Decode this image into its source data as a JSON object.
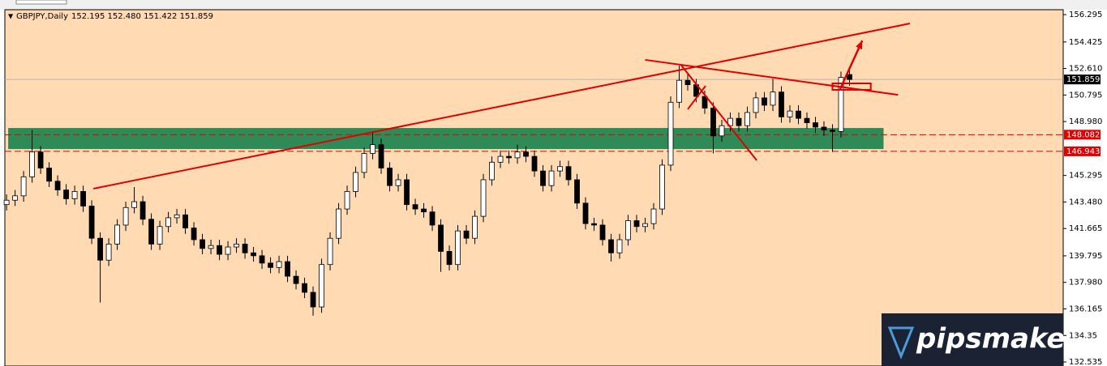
{
  "chart_data": {
    "type": "candlestick",
    "title": "GBPJPY,Daily",
    "subtitle": "152.195 152.480 151.422 151.859",
    "open": [
      143.3,
      143.6,
      143.9,
      145.2,
      146.9,
      145.8,
      144.9,
      144.3,
      143.7,
      144.2,
      143.2,
      141.0,
      139.5,
      140.6,
      141.9,
      143.1,
      143.5,
      142.3,
      140.6,
      141.8,
      142.4,
      142.6,
      141.7,
      140.9,
      140.3,
      140.5,
      139.9,
      140.4,
      140.6,
      140.0,
      139.8,
      139.3,
      139.0,
      139.4,
      138.4,
      137.9,
      137.3,
      136.3,
      139.2,
      141.0,
      143.0,
      144.2,
      145.5,
      146.8,
      147.4,
      145.8,
      144.6,
      145.0,
      143.3,
      143.0,
      142.8,
      141.9,
      140.1,
      139.2,
      141.5,
      141.0,
      142.5,
      145.0,
      146.2,
      146.6,
      146.5,
      146.9,
      146.6,
      145.6,
      144.6,
      145.6,
      145.9,
      145.0,
      143.4,
      142.0,
      141.9,
      140.9,
      140.0,
      140.9,
      142.2,
      141.8,
      142.0,
      143.0,
      146.0,
      150.3,
      151.8,
      151.5,
      150.7,
      149.9,
      148.0,
      148.7,
      149.2,
      148.7,
      149.6,
      150.6,
      150.1,
      151.0,
      149.3,
      149.7,
      149.2,
      148.9,
      148.6,
      148.4,
      148.3,
      152.195
    ],
    "high": [
      144.0,
      144.3,
      145.6,
      148.4,
      147.3,
      146.2,
      145.3,
      144.7,
      144.6,
      144.6,
      143.6,
      141.4,
      141.0,
      142.3,
      143.5,
      144.5,
      143.9,
      142.7,
      142.2,
      142.8,
      143.0,
      143.0,
      142.1,
      141.3,
      140.9,
      140.9,
      140.8,
      141.0,
      141.0,
      140.4,
      140.2,
      139.7,
      139.8,
      139.8,
      138.8,
      138.3,
      137.7,
      139.6,
      141.4,
      143.4,
      144.6,
      145.9,
      147.2,
      148.3,
      147.8,
      146.2,
      145.4,
      145.4,
      143.7,
      143.4,
      143.2,
      142.3,
      140.5,
      141.9,
      141.9,
      142.9,
      145.4,
      146.6,
      147.0,
      147.0,
      147.4,
      147.3,
      147.0,
      146.0,
      146.0,
      146.3,
      146.3,
      145.4,
      143.8,
      142.4,
      142.3,
      141.3,
      141.3,
      142.6,
      142.6,
      142.4,
      143.4,
      146.4,
      150.7,
      152.8,
      152.2,
      151.9,
      151.1,
      150.3,
      149.1,
      149.6,
      149.6,
      150.0,
      151.0,
      151.0,
      151.9,
      151.4,
      150.1,
      150.1,
      149.6,
      149.3,
      149.0,
      148.8,
      152.4,
      152.48
    ],
    "low": [
      142.9,
      143.2,
      143.5,
      144.8,
      145.4,
      144.5,
      143.9,
      143.3,
      143.3,
      142.8,
      140.6,
      136.6,
      139.1,
      140.2,
      141.5,
      142.7,
      141.9,
      140.2,
      140.2,
      141.4,
      142.0,
      141.3,
      140.5,
      139.9,
      139.9,
      139.5,
      139.5,
      140.0,
      139.6,
      139.4,
      138.9,
      138.6,
      138.6,
      138.0,
      137.5,
      136.9,
      135.7,
      135.9,
      138.8,
      140.6,
      142.6,
      143.8,
      145.1,
      146.4,
      145.4,
      144.2,
      144.2,
      142.9,
      142.6,
      142.4,
      141.5,
      138.7,
      138.8,
      138.8,
      140.6,
      140.6,
      142.1,
      144.6,
      145.8,
      146.1,
      146.1,
      146.2,
      145.2,
      144.2,
      144.2,
      145.2,
      144.6,
      143.0,
      141.6,
      141.5,
      140.5,
      139.4,
      139.6,
      140.5,
      141.4,
      141.4,
      141.6,
      142.6,
      145.6,
      149.9,
      151.1,
      150.3,
      149.5,
      146.8,
      147.6,
      148.3,
      148.3,
      148.3,
      149.2,
      149.7,
      149.7,
      148.9,
      148.9,
      148.8,
      148.5,
      148.2,
      148.0,
      146.9,
      147.9,
      151.422
    ],
    "close": [
      143.6,
      143.9,
      145.2,
      146.9,
      145.8,
      144.9,
      144.3,
      143.7,
      144.2,
      143.2,
      141.0,
      139.5,
      140.6,
      141.9,
      143.1,
      143.5,
      142.3,
      140.6,
      141.8,
      142.4,
      142.6,
      141.7,
      140.9,
      140.3,
      140.5,
      139.9,
      140.4,
      140.6,
      140.0,
      139.8,
      139.3,
      139.0,
      139.4,
      138.4,
      137.9,
      137.3,
      136.3,
      139.2,
      141.0,
      143.0,
      144.2,
      145.5,
      146.8,
      147.4,
      145.8,
      144.6,
      145.0,
      143.3,
      143.0,
      142.8,
      141.9,
      140.1,
      139.2,
      141.5,
      141.0,
      142.5,
      145.0,
      146.2,
      146.6,
      146.5,
      146.9,
      146.6,
      145.6,
      144.6,
      145.6,
      145.9,
      145.0,
      143.4,
      142.0,
      141.9,
      140.9,
      140.0,
      140.9,
      142.2,
      141.8,
      142.0,
      143.0,
      146.0,
      150.3,
      151.8,
      151.5,
      150.7,
      149.9,
      148.0,
      148.7,
      149.2,
      148.7,
      149.6,
      150.6,
      150.1,
      151.0,
      149.3,
      149.7,
      149.2,
      148.9,
      148.6,
      148.4,
      148.3,
      152.0,
      151.859
    ],
    "bull_color": "#ffffff",
    "bear_color": "#000000",
    "background": "#ffdab3",
    "xlim": [
      -0.2,
      124.1
    ],
    "ylim": [
      132.26,
      156.63
    ],
    "yticks": [
      156.295,
      154.425,
      {
        "value": 152.61,
        "label": "152.610"
      },
      150.795,
      {
        "value": 148.98,
        "label": "148.980"
      },
      145.295,
      {
        "value": 143.48,
        "label": "143.480"
      },
      141.665,
      139.795,
      {
        "value": 137.98,
        "label": "137.980"
      },
      136.165,
      134.35,
      132.535
    ],
    "last_price": 151.859,
    "last_price_color": "#000000",
    "levels": [
      {
        "value": 148.082,
        "color": "#e00000"
      },
      {
        "value": 146.943,
        "color": "#e00000"
      }
    ],
    "zone": {
      "x": [
        0.19,
        103.0
      ],
      "y": [
        148.54,
        147.1
      ],
      "color": "#2e8b57"
    },
    "lines": [
      {
        "x": [
          10.2,
          106.1
        ],
        "y": [
          144.39,
          155.69
        ],
        "color": "#e00000"
      },
      {
        "x": [
          75.0,
          104.7
        ],
        "y": [
          153.2,
          150.81
        ],
        "color": "#e00000"
      },
      {
        "x": [
          79.2,
          88.1
        ],
        "y": [
          152.86,
          146.33
        ],
        "color": "#e00000"
      },
      {
        "x": [
          80.0,
          82.1
        ],
        "y": [
          149.82,
          151.42
        ],
        "color": "#e00000"
      }
    ],
    "rect": {
      "x": [
        97.0,
        101.5
      ],
      "y": [
        151.59,
        151.15
      ],
      "color": "#e00000"
    },
    "arrow": {
      "x": [
        97.9,
        100.5
      ],
      "y": [
        151.2,
        154.52
      ],
      "color": "#e00000"
    }
  },
  "watermark": "pipsmake"
}
